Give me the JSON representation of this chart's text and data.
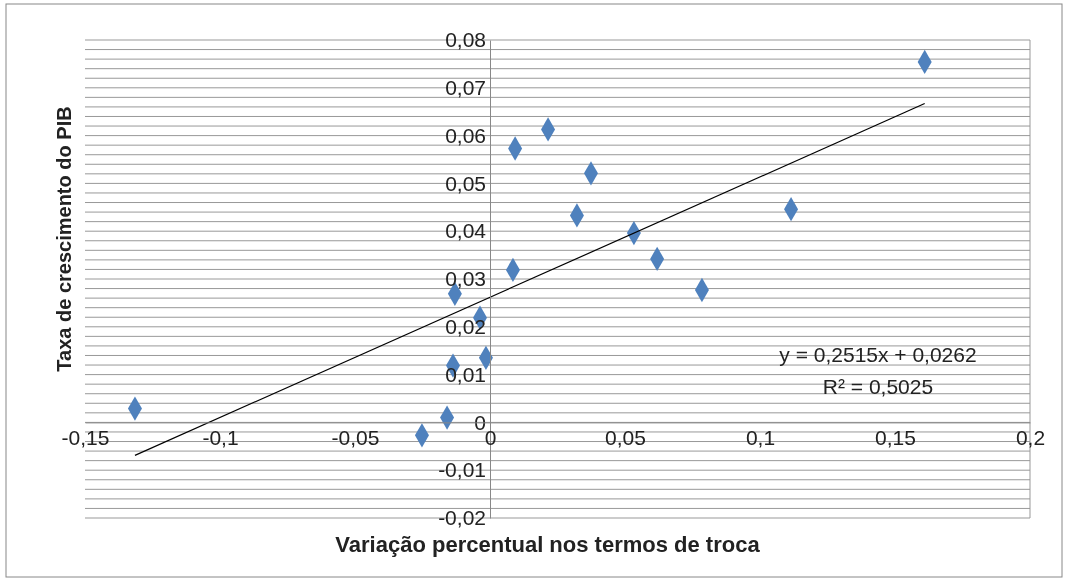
{
  "chart_data": {
    "type": "scatter",
    "xlabel": "Variação percentual nos termos de troca",
    "ylabel": "Taxa de crescimento do PIB",
    "xlim": [
      -0.15,
      0.2
    ],
    "ylim": [
      -0.02,
      0.08
    ],
    "xticks": [
      {
        "value": -0.15,
        "label": "-0,15"
      },
      {
        "value": -0.1,
        "label": "-0,1"
      },
      {
        "value": -0.05,
        "label": "-0,05"
      },
      {
        "value": 0,
        "label": "0"
      },
      {
        "value": 0.05,
        "label": "0,05"
      },
      {
        "value": 0.1,
        "label": "0,1"
      },
      {
        "value": 0.15,
        "label": "0,15"
      },
      {
        "value": 0.2,
        "label": "0,2"
      }
    ],
    "yticks": [
      {
        "value": -0.02,
        "label": "-0,02"
      },
      {
        "value": -0.018,
        "label": null
      },
      {
        "value": -0.016,
        "label": null
      },
      {
        "value": -0.014,
        "label": null
      },
      {
        "value": -0.012,
        "label": null
      },
      {
        "value": -0.01,
        "label": "-0,01"
      },
      {
        "value": -0.008,
        "label": null
      },
      {
        "value": -0.006,
        "label": null
      },
      {
        "value": -0.004,
        "label": null
      },
      {
        "value": -0.002,
        "label": null
      },
      {
        "value": 0,
        "label": "0"
      },
      {
        "value": 0.002,
        "label": null
      },
      {
        "value": 0.004,
        "label": null
      },
      {
        "value": 0.006,
        "label": null
      },
      {
        "value": 0.008,
        "label": null
      },
      {
        "value": 0.01,
        "label": "0,01"
      },
      {
        "value": 0.012,
        "label": null
      },
      {
        "value": 0.014,
        "label": null
      },
      {
        "value": 0.016,
        "label": null
      },
      {
        "value": 0.018,
        "label": null
      },
      {
        "value": 0.02,
        "label": "0,02"
      },
      {
        "value": 0.022,
        "label": null
      },
      {
        "value": 0.024,
        "label": null
      },
      {
        "value": 0.026,
        "label": null
      },
      {
        "value": 0.028,
        "label": null
      },
      {
        "value": 0.03,
        "label": "0,03"
      },
      {
        "value": 0.032,
        "label": null
      },
      {
        "value": 0.034,
        "label": null
      },
      {
        "value": 0.036,
        "label": null
      },
      {
        "value": 0.038,
        "label": null
      },
      {
        "value": 0.04,
        "label": "0,04"
      },
      {
        "value": 0.042,
        "label": null
      },
      {
        "value": 0.044,
        "label": null
      },
      {
        "value": 0.046,
        "label": null
      },
      {
        "value": 0.048,
        "label": null
      },
      {
        "value": 0.05,
        "label": "0,05"
      },
      {
        "value": 0.052,
        "label": null
      },
      {
        "value": 0.054,
        "label": null
      },
      {
        "value": 0.056,
        "label": null
      },
      {
        "value": 0.058,
        "label": null
      },
      {
        "value": 0.06,
        "label": "0,06"
      },
      {
        "value": 0.062,
        "label": null
      },
      {
        "value": 0.064,
        "label": null
      },
      {
        "value": 0.066,
        "label": null
      },
      {
        "value": 0.068,
        "label": null
      },
      {
        "value": 0.07,
        "label": "0,07"
      },
      {
        "value": 0.072,
        "label": null
      },
      {
        "value": 0.074,
        "label": null
      },
      {
        "value": 0.076,
        "label": null
      },
      {
        "value": 0.078,
        "label": null
      },
      {
        "value": 0.08,
        "label": "0,08"
      }
    ],
    "grid": "y",
    "series": [
      {
        "color": "#4f81bd",
        "marker": "diamond",
        "x": [
          -0.1315,
          -0.0252,
          -0.0159,
          -0.0137,
          -0.013,
          -0.0037,
          -0.0015,
          0.0085,
          0.0093,
          0.0215,
          0.0374,
          0.0322,
          0.0533,
          0.0619,
          0.0785,
          0.1115,
          0.161
        ],
        "values": [
          0.0029,
          -0.0027,
          0.001,
          0.0119,
          0.0269,
          0.0219,
          0.0135,
          0.0319,
          0.0573,
          0.0613,
          0.0521,
          0.0433,
          0.0396,
          0.0342,
          0.0277,
          0.0446,
          0.0754
        ]
      },
      {
        "type": "line",
        "color": "#000000",
        "marker": "none",
        "line_style": "solid",
        "x": [
          -0.1315,
          0.161
        ],
        "values": [
          -0.0069,
          0.0667
        ]
      }
    ],
    "annotations": [
      "y = 0,2515x + 0,0262",
      "R² = 0,5025"
    ]
  }
}
